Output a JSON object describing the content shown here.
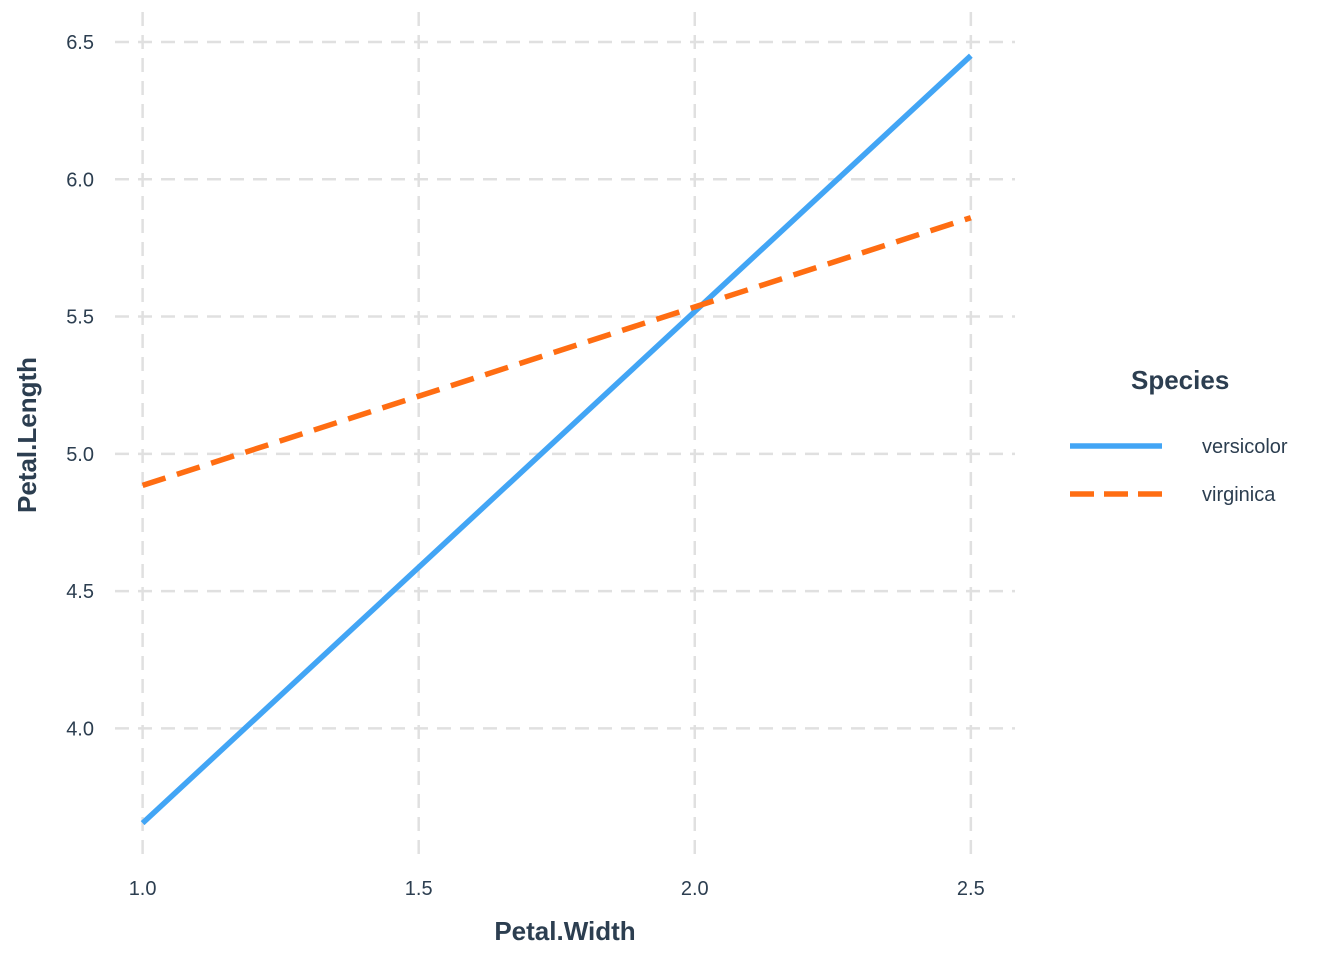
{
  "chart_data": {
    "type": "line",
    "xlabel": "Petal.Width",
    "ylabel": "Petal.Length",
    "xlim": [
      0.95,
      2.58
    ],
    "ylim": [
      3.55,
      6.58
    ],
    "x_ticks": [
      "1.0",
      "1.5",
      "2.0",
      "2.5"
    ],
    "y_ticks": [
      "4.0",
      "4.5",
      "5.0",
      "5.5",
      "6.0",
      "6.5"
    ],
    "grid": true,
    "legend": {
      "title": "Species",
      "placement": "right"
    },
    "series": [
      {
        "name": "versicolor",
        "color": "#42a5f5",
        "dash": "solid",
        "x": [
          1.0,
          2.5
        ],
        "y": [
          3.655,
          6.45
        ]
      },
      {
        "name": "virginica",
        "color": "#ff6d12",
        "dash": "dashed",
        "x": [
          1.0,
          2.5
        ],
        "y": [
          4.885,
          5.86
        ]
      }
    ]
  }
}
